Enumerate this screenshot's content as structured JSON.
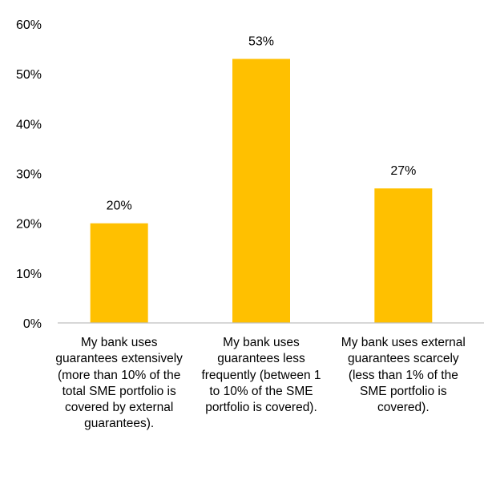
{
  "chart_data": {
    "type": "bar",
    "categories": [
      "My bank uses guarantees extensively (more than 10% of the total SME portfolio is covered by external guarantees).",
      "My bank uses guarantees less frequently (between 1 to 10% of the SME portfolio is covered).",
      "My bank uses external guarantees scarcely (less than 1% of the SME portfolio is covered)."
    ],
    "values": [
      20,
      53,
      27
    ],
    "data_labels": [
      "20%",
      "53%",
      "27%"
    ],
    "y_ticks": [
      "0%",
      "10%",
      "20%",
      "30%",
      "40%",
      "50%",
      "60%"
    ],
    "ylim": [
      0,
      60
    ],
    "grid": false,
    "legend": "none",
    "bar_color": "#FFC000",
    "title": "",
    "xlabel": "",
    "ylabel": ""
  }
}
